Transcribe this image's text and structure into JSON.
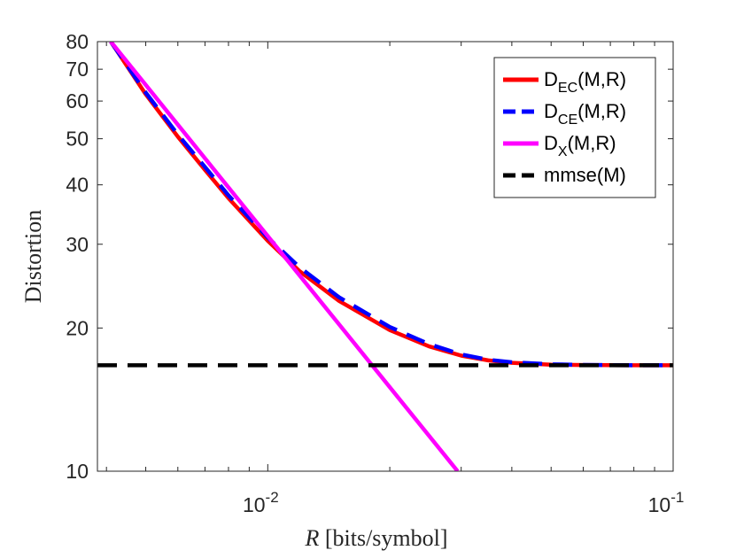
{
  "chart_data": {
    "type": "line",
    "xscale": "log",
    "yscale": "log",
    "xlim": [
      0.0038,
      0.1
    ],
    "ylim": [
      10,
      80
    ],
    "xlabel_var": "R",
    "xlabel_unit": " [bits/symbol]",
    "ylabel": "Distortion",
    "x_ticks": [
      {
        "value": 0.01,
        "base": "10",
        "exp": "-2"
      },
      {
        "value": 0.1,
        "base": "10",
        "exp": "-1"
      }
    ],
    "y_ticks": [
      {
        "value": 10,
        "label": "10"
      },
      {
        "value": 20,
        "label": "20"
      },
      {
        "value": 30,
        "label": "30"
      },
      {
        "value": 40,
        "label": "40"
      },
      {
        "value": 50,
        "label": "50"
      },
      {
        "value": 60,
        "label": "60"
      },
      {
        "value": 70,
        "label": "70"
      },
      {
        "value": 80,
        "label": "80"
      }
    ],
    "legend_position": "top-right",
    "series": [
      {
        "name": "D_EC(M,R)",
        "label_main": "D",
        "label_sub": "EC",
        "label_rest": "(M,R)",
        "color": "#ff0000",
        "dash": "solid",
        "x": [
          0.0041,
          0.005,
          0.006,
          0.007,
          0.008,
          0.01,
          0.012,
          0.015,
          0.02,
          0.025,
          0.03,
          0.035,
          0.04,
          0.05,
          0.06,
          0.07,
          0.08,
          0.1
        ],
        "y": [
          80,
          62,
          50.5,
          43,
          37.5,
          30.5,
          26.3,
          22.8,
          19.8,
          18.3,
          17.5,
          17.1,
          16.9,
          16.75,
          16.72,
          16.71,
          16.7,
          16.7
        ]
      },
      {
        "name": "D_CE(M,R)",
        "label_main": "D",
        "label_sub": "CE",
        "label_rest": "(M,R)",
        "color": "#0000ff",
        "dash": "dashed",
        "x": [
          0.0041,
          0.005,
          0.006,
          0.007,
          0.008,
          0.01,
          0.012,
          0.015,
          0.02,
          0.025,
          0.03,
          0.035,
          0.04,
          0.05,
          0.06,
          0.07,
          0.08,
          0.1
        ],
        "y": [
          80,
          62.5,
          51,
          43.6,
          38,
          31,
          26.8,
          23.2,
          20.1,
          18.5,
          17.6,
          17.15,
          16.95,
          16.78,
          16.73,
          16.71,
          16.7,
          16.7
        ]
      },
      {
        "name": "D_X(M,R)",
        "label_main": "D",
        "label_sub": "X",
        "label_rest": "(M,R)",
        "color": "#ff00ff",
        "dash": "solid",
        "x": [
          0.0041,
          0.0294
        ],
        "y": [
          80,
          10
        ]
      },
      {
        "name": "mmse(M)",
        "label_main": "mmse(M)",
        "label_sub": "",
        "label_rest": "",
        "color": "#000000",
        "dash": "dashed",
        "x": [
          0.0038,
          0.1
        ],
        "y": [
          16.7,
          16.7
        ]
      }
    ]
  }
}
